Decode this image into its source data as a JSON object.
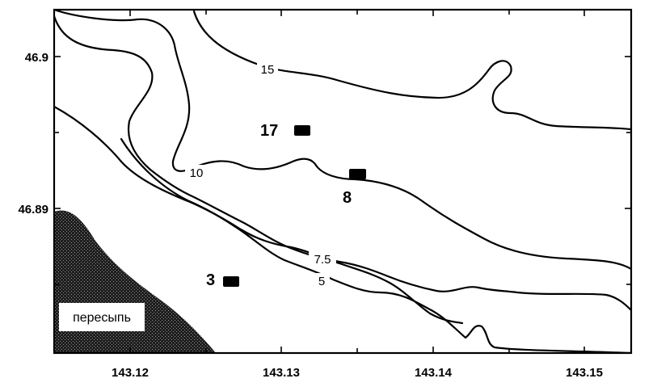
{
  "map": {
    "x_ticks": [
      "143.12",
      "143.13",
      "143.14",
      "143.15"
    ],
    "y_ticks": [
      "46.9",
      "46.89"
    ],
    "contours": [
      {
        "id": "15",
        "label": "15"
      },
      {
        "id": "10",
        "label": "10"
      },
      {
        "id": "7.5",
        "label": "7.5"
      },
      {
        "id": "5",
        "label": "5"
      }
    ],
    "stations": [
      {
        "id": "17",
        "label": "17"
      },
      {
        "id": "8",
        "label": "8"
      },
      {
        "id": "3",
        "label": "3"
      }
    ],
    "sandbar": {
      "label": "пересыпь"
    },
    "colors": {
      "line": "#000000",
      "background": "#ffffff",
      "sand": "#2a2a2a"
    }
  }
}
